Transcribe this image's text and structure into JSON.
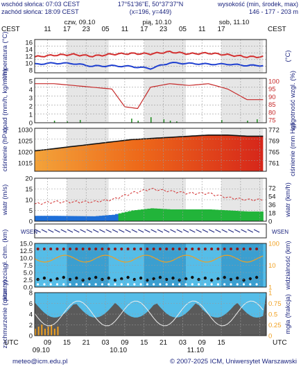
{
  "header": {
    "sunrise": "wschód słońca: 07:03 CEST",
    "sunset": "zachód słońca: 18:09 CEST",
    "coords": "17°51'36\"E, 50°37'37\"N",
    "grid": "(x=196, y=449)",
    "elev_label": "wysokość (min, środek, max)",
    "elev_values": "146 - 177 - 203 m"
  },
  "timeline": {
    "tz_left": "CEST",
    "tz_right": "CEST",
    "days": [
      "czw, 09.10",
      "pią, 10.10",
      "sob, 11.10"
    ],
    "hour_ticks_top": [
      "11",
      "17",
      "23",
      "05",
      "11",
      "17",
      "23",
      "05",
      "11",
      "17"
    ],
    "utc_label_left": "UTC",
    "utc_label_right": "UTC",
    "hour_ticks_bottom": [
      "09",
      "15",
      "21",
      "03",
      "09",
      "15",
      "21",
      "03",
      "09",
      "15"
    ],
    "bottom_dates": [
      "09.10",
      "10.10",
      "11.10"
    ]
  },
  "footer": {
    "email": "meteo@icm.edu.pl",
    "copyright": "© 2007-2025 ICM, Uniwersytet Warszawski"
  },
  "panels": {
    "temp": {
      "ylabel": "temperatura (°C)",
      "ylabel_right": "(°C)",
      "ticks": [
        "16",
        "14",
        "12",
        "10",
        "8"
      ]
    },
    "precip": {
      "ylabel": "opad (mm/h, kg/m²/h)",
      "ylabel_right": "wilgotność wzgl. (%)",
      "ticks_left": [
        "5",
        "4",
        "3",
        "2",
        "1",
        "0"
      ],
      "ticks_right": [
        "100",
        "95",
        "90",
        "85",
        "80",
        "75"
      ]
    },
    "pressure": {
      "ylabel": "ciśnienie (hPa)",
      "ylabel_right": "ciśnienie (mm Hg)",
      "ticks_left": [
        "1030",
        "1025",
        "1020",
        "1015"
      ],
      "ticks_right": [
        "772",
        "769",
        "765",
        "761"
      ]
    },
    "wind": {
      "ylabel": "wiatr (m/s)",
      "ylabel_right": "wiatr (km/h)",
      "ticks_left": [
        "20",
        "15",
        "10",
        "5",
        "0"
      ],
      "ticks_right": [
        "72",
        "54",
        "36",
        "18",
        "0"
      ]
    },
    "dir": {
      "label_left": "WSEN",
      "label_right": "WSEN"
    },
    "cloud": {
      "ylabel": "pion. rozciągł. chm. (km)",
      "ylabel_right": "widzialność (km)",
      "ticks_left": [
        "15.0",
        "12.5",
        "10.0",
        "7.5",
        "5.0",
        "2.5",
        "0.0"
      ],
      "ticks_right": [
        "100",
        "10",
        "1"
      ]
    },
    "cover": {
      "ylabel": "zachmurzenie (oktanty)",
      "ylabel_right": "mgła (frakcja)",
      "ticks_left": [
        "8",
        "6",
        "4",
        "2",
        "0"
      ],
      "ticks_right": [
        "1",
        "0.75",
        "0.5",
        "0.25",
        "0"
      ]
    }
  },
  "chart_data": [
    {
      "type": "line",
      "title": "temperatura",
      "x_hours_from_start": [
        0,
        6,
        12,
        18,
        24,
        30,
        36,
        42,
        48,
        54,
        60,
        66
      ],
      "series": [
        {
          "values": [
            11.8,
            12.3,
            12.5,
            12.0,
            12.6,
            12.8,
            12.7,
            13.3,
            12.7,
            12.9,
            12.4,
            11.8
          ]
        },
        {
          "values": [
            9.6,
            9.9,
            9.8,
            9.0,
            9.1,
            8.9,
            8.3,
            10.0,
            9.8,
            9.6,
            9.6,
            9.2
          ]
        }
      ],
      "ylim": [
        7,
        17
      ]
    },
    {
      "type": "line",
      "title": "wilgotność",
      "x_hours_from_start": [
        0,
        6,
        12,
        18,
        24,
        28,
        32,
        36,
        42,
        48,
        54,
        60,
        66
      ],
      "values": [
        97,
        97,
        96,
        95,
        94,
        84,
        83,
        95,
        97,
        96,
        97,
        94,
        88
      ],
      "ylim": [
        75,
        100
      ]
    },
    {
      "type": "area",
      "title": "ciśnienie",
      "x_hours_from_start": [
        0,
        6,
        12,
        18,
        24,
        30,
        36,
        42,
        48,
        54,
        60,
        66
      ],
      "values": [
        1020,
        1021,
        1022,
        1023,
        1024,
        1025,
        1025.5,
        1026,
        1026.5,
        1027,
        1027,
        1026.5
      ],
      "ylim": [
        1011,
        1030
      ]
    },
    {
      "type": "bar",
      "title": "wiatr",
      "x_hours_from_start": [
        0,
        6,
        12,
        18,
        24,
        30,
        36,
        42,
        48,
        54,
        60,
        66
      ],
      "series": [
        {
          "values": [
            2.5,
            2.5,
            2.4,
            2.3,
            3.0,
            5.0,
            6.0,
            5.5,
            5.5,
            5.5,
            5.0,
            4.5
          ]
        },
        {
          "values": [
            8,
            9,
            9,
            9,
            10,
            13,
            15,
            14,
            13,
            13,
            11,
            10
          ]
        }
      ],
      "ylim": [
        0,
        20
      ]
    }
  ]
}
